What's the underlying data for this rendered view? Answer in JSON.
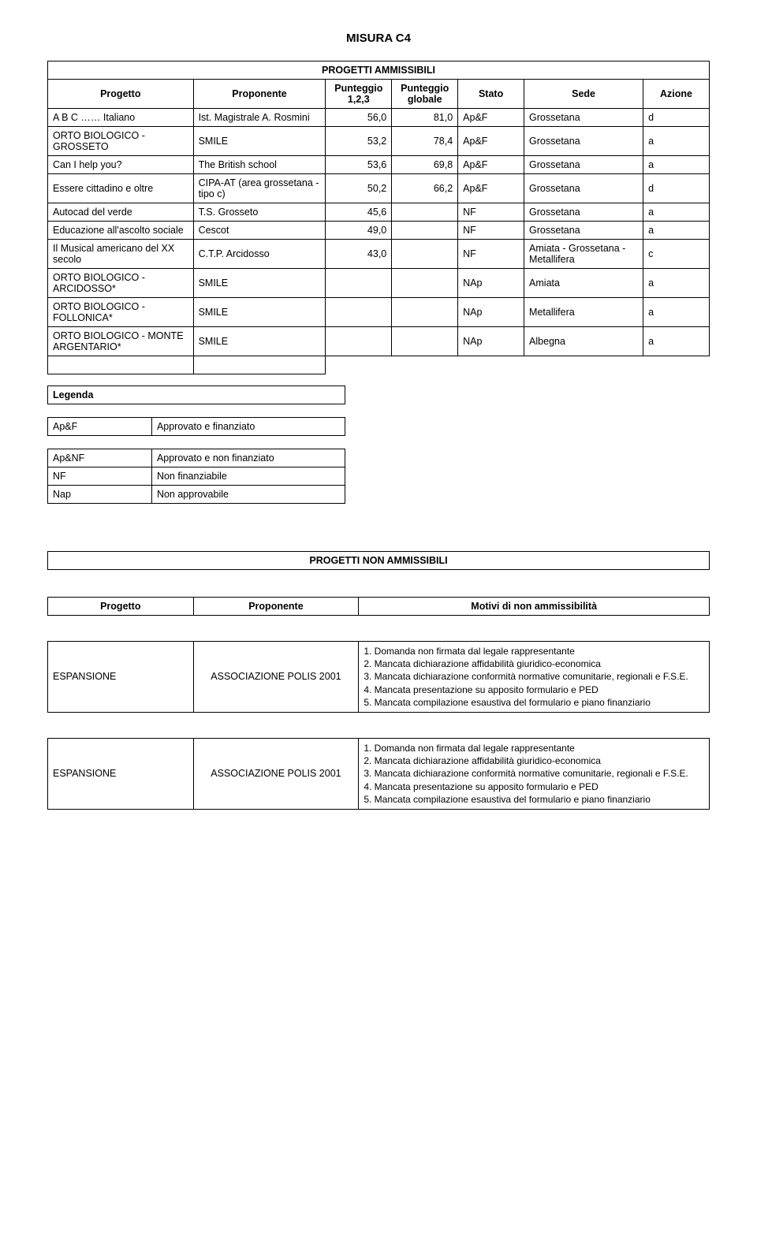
{
  "page_title": "MISURA C4",
  "table1": {
    "section_title": "PROGETTI AMMISSIBILI",
    "headers": {
      "progetto": "Progetto",
      "proponente": "Proponente",
      "punteggio123": "Punteggio 1,2,3",
      "punteggio_globale": "Punteggio globale",
      "stato": "Stato",
      "sede": "Sede",
      "azione": "Azione"
    },
    "rows": [
      {
        "progetto": "A B C …… Italiano",
        "proponente": "Ist. Magistrale A. Rosmini",
        "p123": "56,0",
        "pglob": "81,0",
        "stato": "Ap&F",
        "sede": "Grossetana",
        "azione": "d"
      },
      {
        "progetto": "ORTO BIOLOGICO - GROSSETO",
        "proponente": "SMILE",
        "p123": "53,2",
        "pglob": "78,4",
        "stato": "Ap&F",
        "sede": "Grossetana",
        "azione": "a"
      },
      {
        "progetto": "Can I help you?",
        "proponente": "The British school",
        "p123": "53,6",
        "pglob": "69,8",
        "stato": "Ap&F",
        "sede": "Grossetana",
        "azione": "a"
      },
      {
        "progetto": "Essere cittadino e oltre",
        "proponente": "CIPA-AT (area grossetana - tipo c)",
        "p123": "50,2",
        "pglob": "66,2",
        "stato": "Ap&F",
        "sede": "Grossetana",
        "azione": "d"
      },
      {
        "progetto": "Autocad del verde",
        "proponente": "T.S. Grosseto",
        "p123": "45,6",
        "pglob": "",
        "stato": "NF",
        "sede": "Grossetana",
        "azione": "a"
      },
      {
        "progetto": "Educazione all'ascolto sociale",
        "proponente": "Cescot",
        "p123": "49,0",
        "pglob": "",
        "stato": "NF",
        "sede": "Grossetana",
        "azione": "a"
      },
      {
        "progetto": "Il Musical americano del XX secolo",
        "proponente": "C.T.P. Arcidosso",
        "p123": "43,0",
        "pglob": "",
        "stato": "NF",
        "sede": "Amiata - Grossetana - Metallifera",
        "azione": "c"
      },
      {
        "progetto": "ORTO BIOLOGICO - ARCIDOSSO*",
        "proponente": "SMILE",
        "p123": "",
        "pglob": "",
        "stato": "NAp",
        "sede": "Amiata",
        "azione": "a"
      },
      {
        "progetto": "ORTO BIOLOGICO - FOLLONICA*",
        "proponente": "SMILE",
        "p123": "",
        "pglob": "",
        "stato": "NAp",
        "sede": "Metallifera",
        "azione": "a"
      },
      {
        "progetto": "ORTO BIOLOGICO - MONTE ARGENTARIO*",
        "proponente": "SMILE",
        "p123": "",
        "pglob": "",
        "stato": "NAp",
        "sede": "Albegna",
        "azione": "a"
      },
      {
        "progetto": "",
        "proponente": "",
        "p123": "",
        "pglob": "",
        "stato": "",
        "sede": "",
        "azione": ""
      }
    ]
  },
  "legend": {
    "title": "Legenda",
    "rows": [
      {
        "code": "Ap&F",
        "desc": "Approvato e finanziato"
      },
      {
        "code": "Ap&NF",
        "desc": "Approvato e non finanziato"
      },
      {
        "code": "NF",
        "desc": "Non finanziabile"
      },
      {
        "code": "Nap",
        "desc": "Non approvabile"
      }
    ]
  },
  "table2": {
    "section_title": "PROGETTI NON AMMISSIBILI",
    "headers": {
      "progetto": "Progetto",
      "proponente": "Proponente",
      "motivi": "Motivi di non ammissibilità"
    },
    "rows": [
      {
        "progetto": "ESPANSIONE",
        "proponente": "ASSOCIAZIONE POLIS 2001",
        "motivi": "1. Domanda non firmata dal legale rappresentante\n2. Mancata dichiarazione affidabilità giuridico-economica\n3. Mancata dichiarazione conformità normative comunitarie, regionali e F.S.E.\n4. Mancata presentazione su apposito formulario e PED\n5. Mancata compilazione esaustiva del formulario e piano finanziario"
      },
      {
        "progetto": "ESPANSIONE",
        "proponente": "ASSOCIAZIONE POLIS 2001",
        "motivi": "1. Domanda non firmata dal legale rappresentante\n2. Mancata dichiarazione affidabilità giuridico-economica\n3. Mancata dichiarazione conformità normative comunitarie, regionali e F.S.E.\n4. Mancata presentazione su apposito formulario e PED\n5. Mancata compilazione esaustiva del formulario e piano finanziario"
      }
    ]
  }
}
